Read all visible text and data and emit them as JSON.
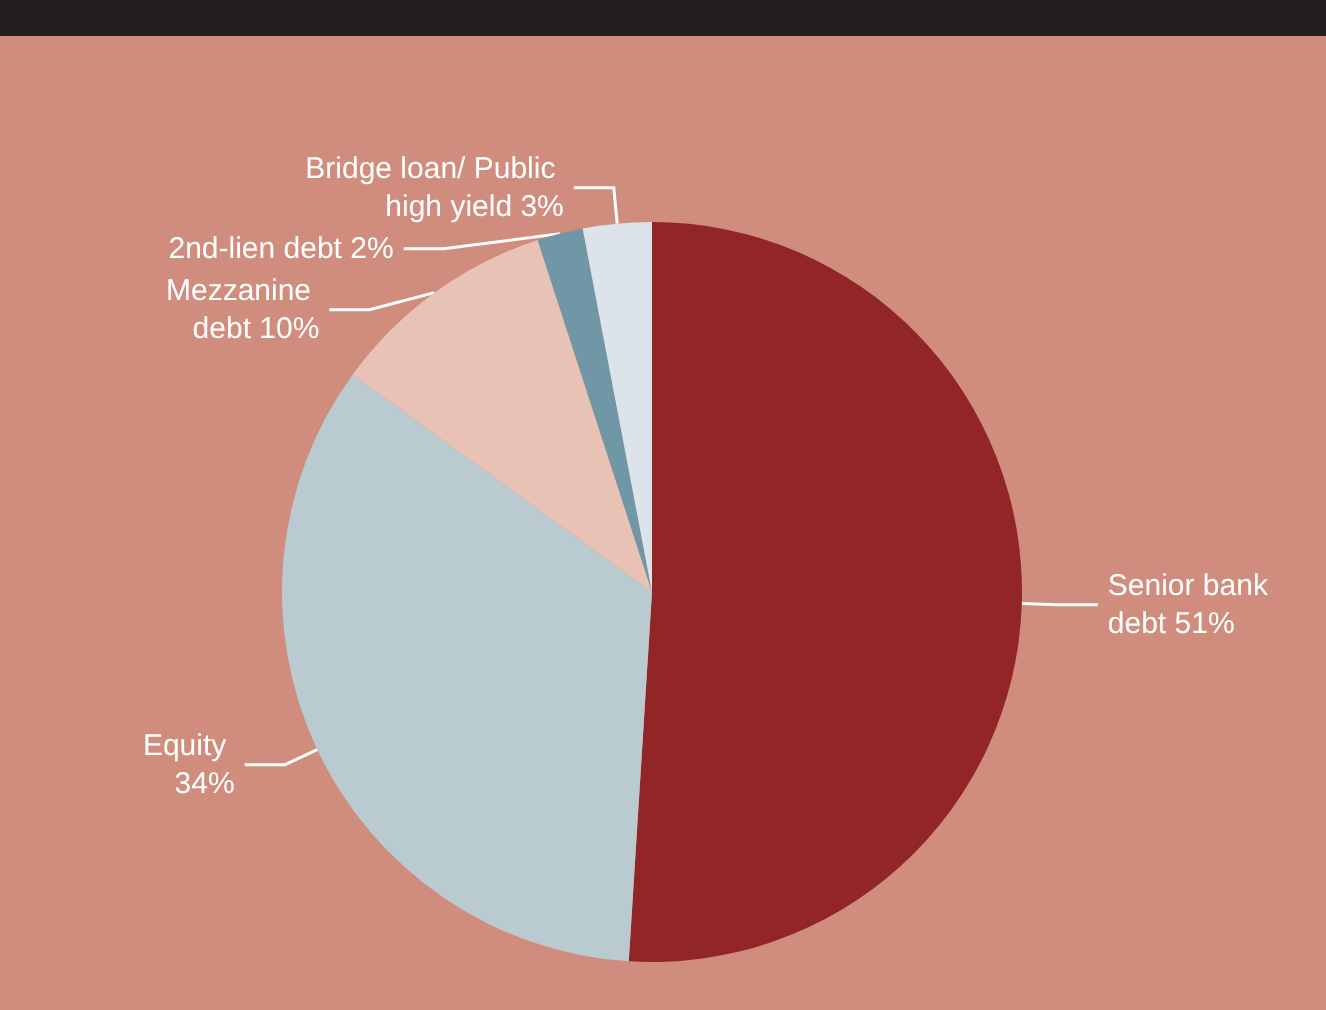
{
  "chart_data": {
    "type": "pie",
    "categories": [
      "Senior bank debt",
      "Equity",
      "Mezzanine debt",
      "2nd-lien debt",
      "Bridge loan/ Public high yield"
    ],
    "values": [
      51,
      34,
      10,
      2,
      3
    ],
    "colors": [
      "#922525",
      "#b9cbd1",
      "#e8c2b4",
      "#6f97a6",
      "#dde3ea"
    ],
    "value_labels": [
      "51%",
      "34%",
      "10%",
      "2%",
      "3%"
    ],
    "legend": false
  }
}
